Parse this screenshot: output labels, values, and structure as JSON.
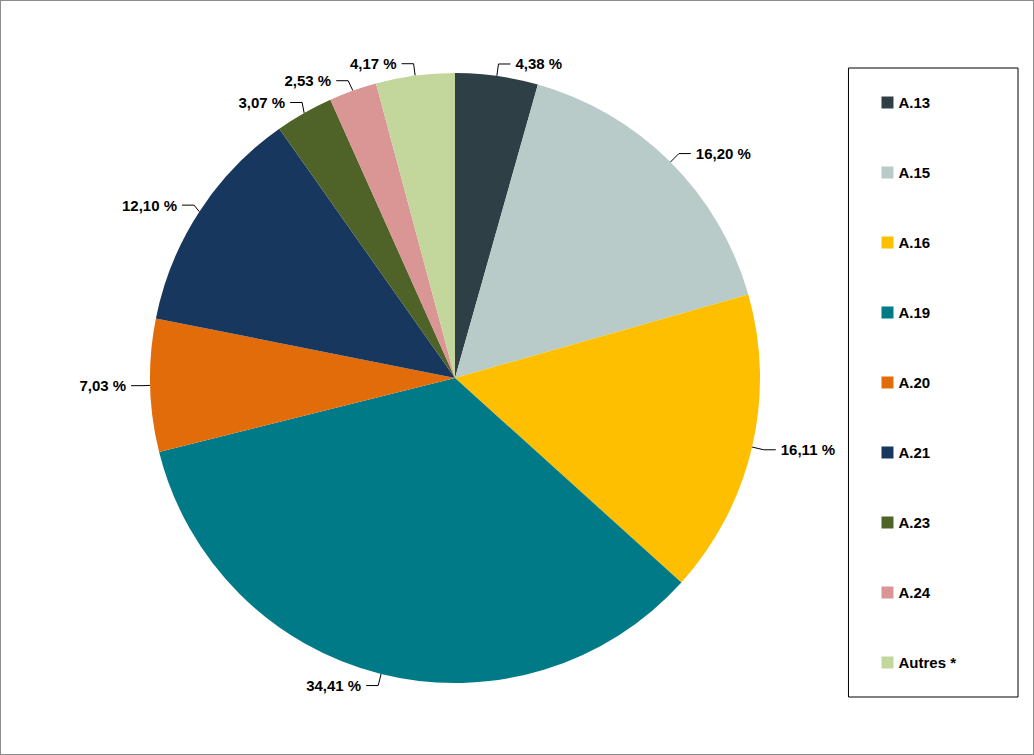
{
  "chart_data": {
    "type": "pie",
    "categories": [
      "A.13",
      "A.15",
      "A.16",
      "A.19",
      "A.20",
      "A.21",
      "A.23",
      "A.24",
      "Autres *"
    ],
    "values": [
      4.38,
      16.2,
      16.11,
      34.41,
      7.03,
      12.1,
      3.07,
      2.53,
      4.17
    ],
    "value_labels": [
      "4,38 %",
      "16,20 %",
      "16,11 %",
      "34,41 %",
      "7,03 %",
      "12,10 %",
      "3,07 %",
      "2,53 %",
      "4,17 %"
    ],
    "colors": [
      "#2e4045",
      "#b9cbc8",
      "#fdbf00",
      "#007a87",
      "#e36c0a",
      "#17375e",
      "#4f6228",
      "#d99694",
      "#c3d69b"
    ],
    "data_labels": true,
    "legend": "right"
  }
}
